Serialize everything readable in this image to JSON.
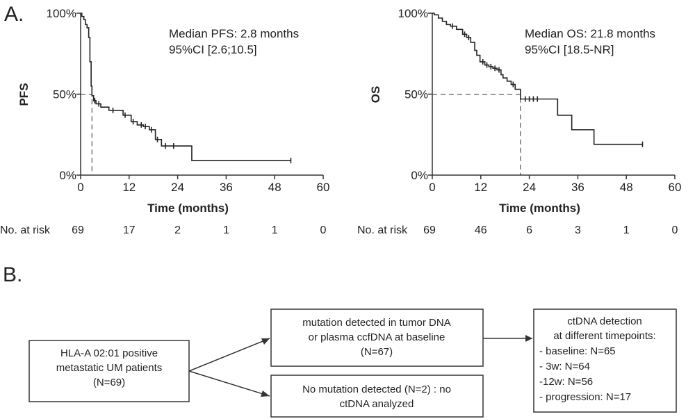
{
  "panel_a_label": "A.",
  "panel_b_label": "B.",
  "chart_data": [
    {
      "type": "line",
      "ylabel": "PFS",
      "xlabel": "Time (months)",
      "xlim": [
        0,
        60
      ],
      "ylim": [
        0,
        100
      ],
      "x_ticks": [
        "0",
        "12",
        "24",
        "36",
        "48",
        "60"
      ],
      "y_ticks": [
        "0%",
        "50%",
        "100%"
      ],
      "annotation_line1": "Median PFS: 2.8 months",
      "annotation_line2": "95%CI [2.6;10.5]",
      "median": 2.8,
      "x": [
        0,
        0.3,
        0.8,
        1.2,
        1.6,
        2.0,
        2.3,
        2.6,
        2.8,
        3.2,
        3.8,
        5,
        7,
        9,
        10.5,
        12.5,
        14,
        15.5,
        17,
        18.5,
        20,
        26,
        27.5,
        52
      ],
      "y": [
        100,
        98,
        96,
        93,
        91,
        85,
        70,
        55,
        49,
        46,
        44,
        42,
        40,
        40,
        37,
        33,
        31,
        30,
        28,
        22,
        18,
        18,
        9,
        9
      ],
      "censor_x": [
        3.5,
        4.5,
        8,
        11,
        13,
        15,
        16,
        17.5,
        19,
        21,
        23,
        52
      ],
      "risk_label": "No. at risk",
      "at_risk": [
        "69",
        "17",
        "2",
        "1",
        "1",
        "0"
      ]
    },
    {
      "type": "line",
      "ylabel": "OS",
      "xlabel": "Time (months)",
      "xlim": [
        0,
        60
      ],
      "ylim": [
        0,
        100
      ],
      "x_ticks": [
        "0",
        "12",
        "24",
        "36",
        "48",
        "60"
      ],
      "y_ticks": [
        "0%",
        "50%",
        "100%"
      ],
      "annotation_line1": "Median OS: 21.8 months",
      "annotation_line2": "95%CI [18.5-NR]",
      "median": 21.8,
      "x": [
        0,
        0.5,
        1.5,
        2.5,
        3.5,
        4.5,
        6,
        7.5,
        8.5,
        9.5,
        10.5,
        11,
        11.8,
        13,
        14,
        15,
        16,
        17,
        17.5,
        18.5,
        19.5,
        20.5,
        21.8,
        31,
        34.5,
        40,
        52
      ],
      "y": [
        100,
        99,
        97,
        95,
        93,
        92,
        90,
        87,
        85,
        82,
        77,
        74,
        70,
        68,
        67,
        66,
        65,
        62,
        60,
        58,
        56,
        53,
        47,
        37,
        28,
        19,
        19
      ],
      "censor_x": [
        5,
        8,
        9,
        12.5,
        13.5,
        14.5,
        15.5,
        16.5,
        20,
        23,
        24,
        25,
        26,
        52
      ],
      "risk_label": "No. at risk",
      "at_risk": [
        "69",
        "46",
        "6",
        "3",
        "1",
        "0"
      ]
    }
  ],
  "flowchart": {
    "start": [
      "HLA-A 02:01 positive",
      "metastatic UM patients",
      "(N=69)"
    ],
    "detected": [
      "mutation detected in tumor DNA",
      "or plasma ccfDNA at baseline",
      "(N=67)"
    ],
    "not_detected": [
      "No mutation detected (N=2) : no",
      "ctDNA analyzed"
    ],
    "ctdna_title": [
      "ctDNA detection",
      "at different timepoints:"
    ],
    "ctdna_items": [
      "- baseline: N=65",
      "- 3w: N=64",
      "-12w: N=56",
      "- progression: N=17"
    ]
  }
}
